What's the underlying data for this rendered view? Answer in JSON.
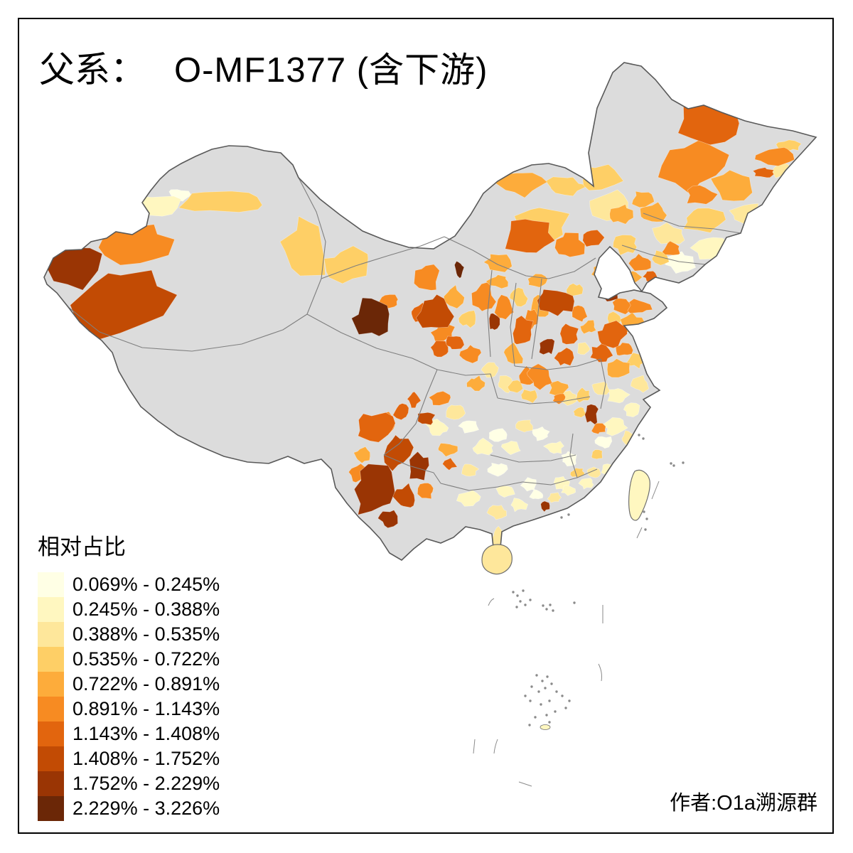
{
  "title": {
    "prefix": "父系：",
    "main": "O-MF1377 (含下游)"
  },
  "legend": {
    "title": "相对占比",
    "classes": [
      {
        "label": "0.069% - 0.245%",
        "color": "#FFFFE5"
      },
      {
        "label": "0.245% - 0.388%",
        "color": "#FFF7C0"
      },
      {
        "label": "0.388% - 0.535%",
        "color": "#FEE79B"
      },
      {
        "label": "0.535% - 0.722%",
        "color": "#FECF66"
      },
      {
        "label": "0.722% - 0.891%",
        "color": "#FDAC3B"
      },
      {
        "label": "0.891% - 1.143%",
        "color": "#F78B22"
      },
      {
        "label": "1.143% - 1.408%",
        "color": "#E2650E"
      },
      {
        "label": "1.408% - 1.752%",
        "color": "#C24B04"
      },
      {
        "label": "1.752% - 2.229%",
        "color": "#9A3504"
      },
      {
        "label": "2.229% - 3.226%",
        "color": "#6B2707"
      }
    ]
  },
  "attribution": "作者:O1a溯源群",
  "map": {
    "type": "choropleth",
    "region": "China, prefecture level",
    "no_data_color": "#DCDCDC",
    "national_border_color": "#595959",
    "province_border_color": "#7F7F7F",
    "sea_color": "#FFFFFF",
    "frame_color": "#000000"
  }
}
